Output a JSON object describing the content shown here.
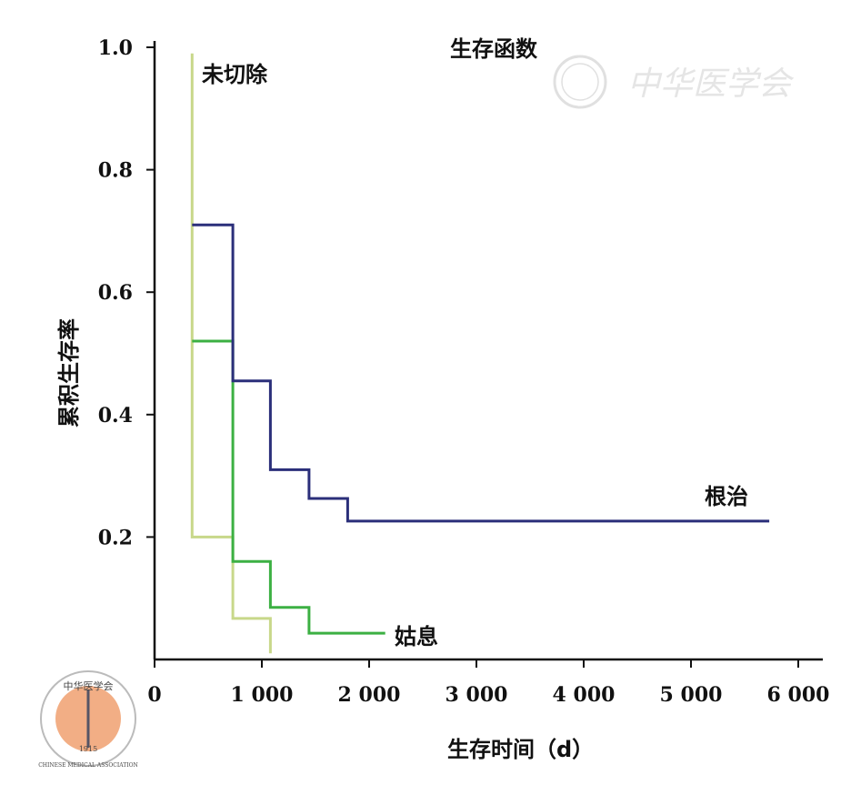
{
  "chart_data": {
    "type": "line",
    "subtype": "kaplan-meier-step",
    "title": "生存函数",
    "xlabel": "生存时间（d）",
    "ylabel": "累积生存率",
    "xlim": [
      0,
      6300
    ],
    "ylim": [
      0,
      1.0
    ],
    "xticks": [
      0,
      1000,
      2000,
      3000,
      4000,
      5000,
      6000
    ],
    "xtick_labels": [
      "0",
      "1 000",
      "2 000",
      "3 000",
      "4 000",
      "5 000",
      "6 000"
    ],
    "yticks": [
      0.2,
      0.4,
      0.6,
      0.8,
      1.0
    ],
    "ytick_labels": [
      "0.2",
      "0.4",
      "0.6",
      "0.8",
      "1.0"
    ],
    "grid": false,
    "series": [
      {
        "name": "未切除",
        "color": "#c8d88a",
        "points": [
          [
            350,
            0.99
          ],
          [
            350,
            0.2
          ],
          [
            730,
            0.2
          ],
          [
            730,
            0.067
          ],
          [
            1080,
            0.067
          ],
          [
            1080,
            0.01
          ]
        ]
      },
      {
        "name": "姑息",
        "color": "#3cb043",
        "points": [
          [
            350,
            0.52
          ],
          [
            730,
            0.52
          ],
          [
            730,
            0.2
          ],
          [
            730,
            0.16
          ],
          [
            1080,
            0.16
          ],
          [
            1080,
            0.085
          ],
          [
            1440,
            0.085
          ],
          [
            1440,
            0.043
          ],
          [
            2150,
            0.043
          ]
        ]
      },
      {
        "name": "根治",
        "color": "#2b2f7a",
        "points": [
          [
            350,
            0.71
          ],
          [
            730,
            0.71
          ],
          [
            730,
            0.455
          ],
          [
            1080,
            0.455
          ],
          [
            1080,
            0.31
          ],
          [
            1440,
            0.31
          ],
          [
            1440,
            0.263
          ],
          [
            1800,
            0.263
          ],
          [
            1800,
            0.226
          ],
          [
            5730,
            0.226
          ]
        ]
      }
    ]
  },
  "watermark": {
    "text": "中华医学会"
  },
  "logo": {
    "top": "中华医学会",
    "bottom": "CHINESE MEDICAL ASSOCIATION",
    "year": "1915"
  }
}
